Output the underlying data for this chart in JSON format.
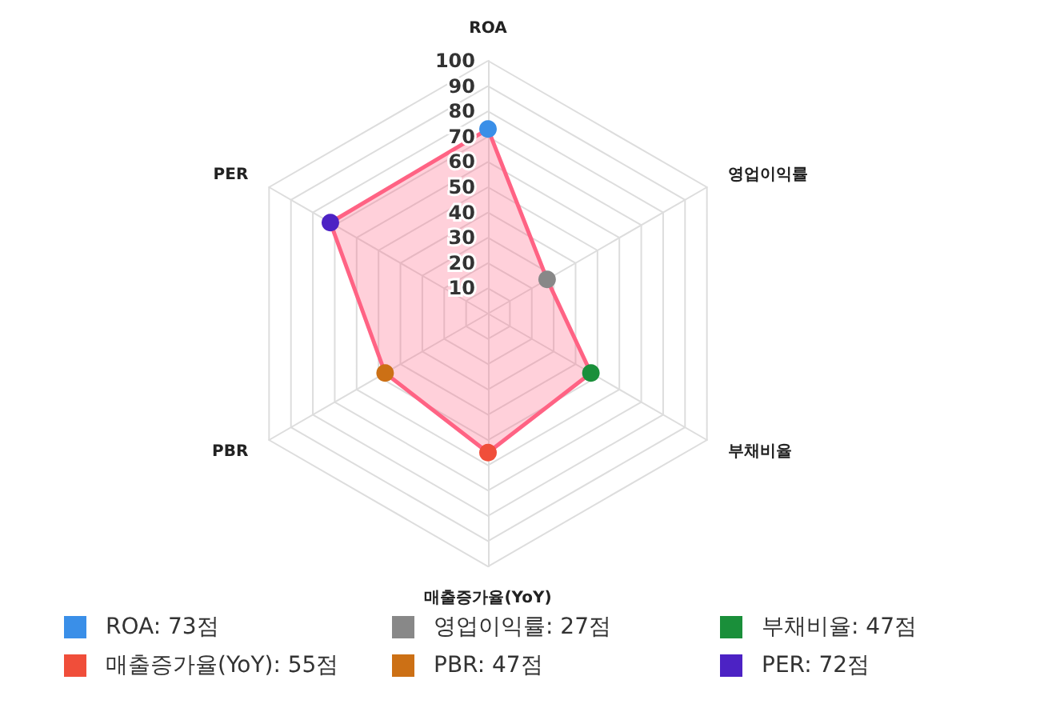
{
  "chart_data": {
    "type": "radar",
    "categories": [
      "ROA",
      "영업이익률",
      "부채비율",
      "매출증가율(YoY)",
      "PBR",
      "PER"
    ],
    "series": [
      {
        "color": "#ff6384",
        "values": [
          73,
          27,
          47,
          55,
          47,
          72
        ]
      }
    ],
    "colors": [
      "#3a8fe8",
      "#888888",
      "#1a8f3a",
      "#f04e3a",
      "#cc7015",
      "#4c22c4"
    ],
    "value_labels": [
      "ROA: 73점",
      "영업이익률: 27점",
      "부채비율: 47점",
      "매출증가율(YoY): 55점",
      "PBR: 47점",
      "PER: 72점"
    ],
    "ylim": [
      0,
      100
    ],
    "yticks": [
      10,
      20,
      30,
      40,
      50,
      60,
      70,
      80,
      90,
      100
    ],
    "grid": true,
    "marker": "circle"
  }
}
